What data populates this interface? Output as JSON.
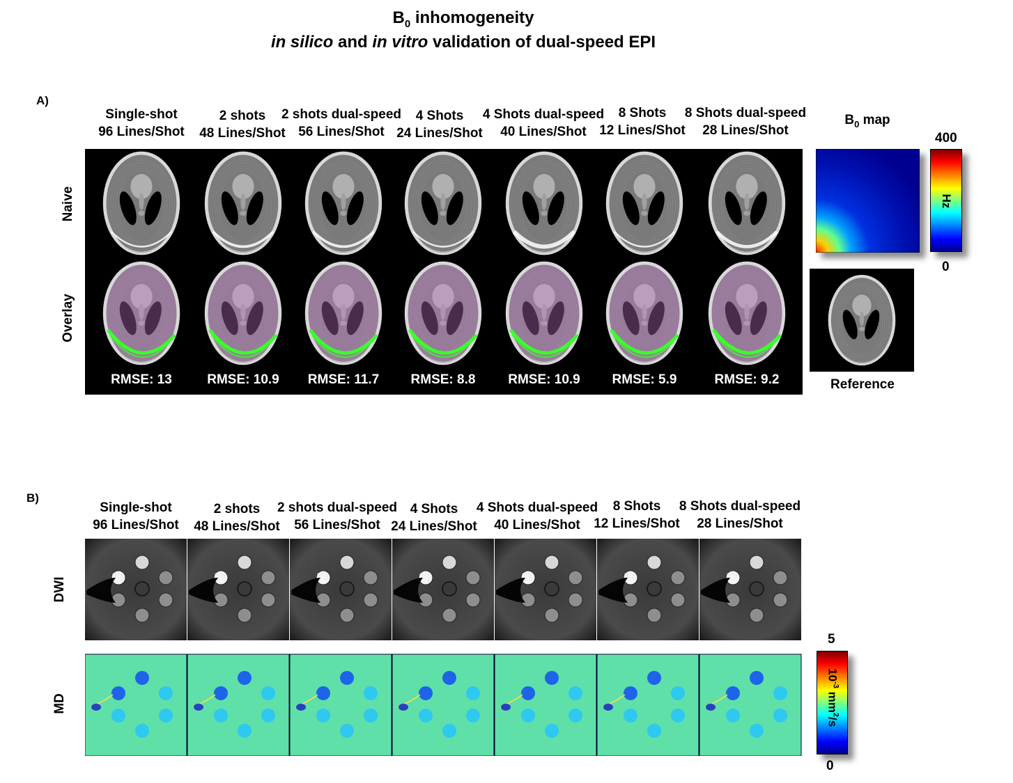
{
  "title": {
    "line1_main": "B",
    "line1_sub": "0",
    "line1_rest": " inhomogeneity",
    "line2_i1": "in silico",
    "line2_and": " and ",
    "line2_i2": "in vitro",
    "line2_rest": " validation of dual-speed EPI"
  },
  "panel_a": {
    "label": "A)",
    "columns": [
      {
        "line1": "Single-shot",
        "line2": "96 Lines/Shot"
      },
      {
        "line1": "2 shots",
        "line2": "48 Lines/Shot"
      },
      {
        "line1": "2 shots dual-speed",
        "line2": "56 Lines/Shot"
      },
      {
        "line1": "4 Shots",
        "line2": "24 Lines/Shot"
      },
      {
        "line1": "4 Shots dual-speed",
        "line2": "40 Lines/Shot"
      },
      {
        "line1": "8 Shots",
        "line2": "12 Lines/Shot"
      },
      {
        "line1": "8 Shots dual-speed",
        "line2": "28 Lines/Shot"
      }
    ],
    "rows": [
      "Naive",
      "Overlay"
    ],
    "rmse": [
      "RMSE: 13",
      "RMSE: 10.9",
      "RMSE: 11.7",
      "RMSE: 8.8",
      "RMSE: 10.9",
      "RMSE: 5.9",
      "RMSE: 9.2"
    ],
    "b0map_title_main": "B",
    "b0map_title_sub": "0",
    "b0map_title_rest": " map",
    "colorbar_max": "400",
    "colorbar_min": "0",
    "colorbar_unit": "Hz",
    "reference_label": "Reference"
  },
  "panel_b": {
    "label": "B)",
    "columns": [
      {
        "line1": "Single-shot",
        "line2": "96 Lines/Shot"
      },
      {
        "line1": "2 shots",
        "line2": "48 Lines/Shot"
      },
      {
        "line1": "2 shots dual-speed",
        "line2": "56 Lines/Shot"
      },
      {
        "line1": "4 Shots",
        "line2": "24 Lines/Shot"
      },
      {
        "line1": "4 Shots dual-speed",
        "line2": "40 Lines/Shot"
      },
      {
        "line1": "8 Shots",
        "line2": "12 Lines/Shot"
      },
      {
        "line1": "8 Shots dual-speed",
        "line2": "28 Lines/Shot"
      }
    ],
    "rows": [
      "DWI",
      "MD"
    ],
    "colorbar_max": "5",
    "colorbar_min": "0",
    "colorbar_unit_base": "10",
    "colorbar_unit_exp1": "-3",
    "colorbar_unit_mid": " mm",
    "colorbar_unit_exp2": "2",
    "colorbar_unit_end": "/s"
  },
  "colors": {
    "jet_low": "#00008f",
    "jet_high": "#800000",
    "md_background": "#5fe0a8",
    "overlay_green": "#39ff2a",
    "overlay_magenta": "#d07ad8"
  }
}
